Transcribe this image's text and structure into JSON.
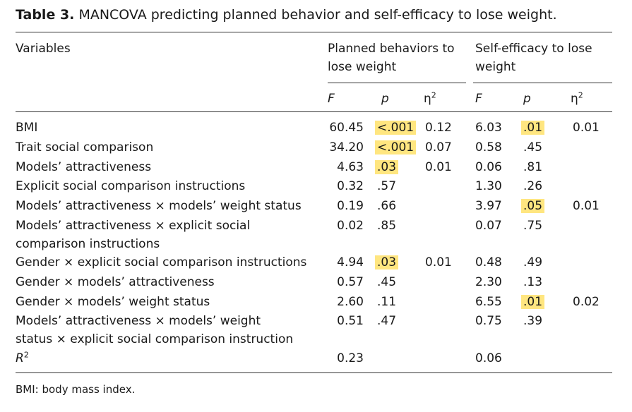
{
  "caption": {
    "label": "Table 3.",
    "text": "MANCOVA predicting planned behavior and self-efficacy to lose weight."
  },
  "header": {
    "variables": "Variables",
    "group1_line1": "Planned behaviors to",
    "group1_line2": "lose weight",
    "group2_line1": "Self-efficacy to lose",
    "group2_line2": "weight",
    "F": "F",
    "p": "p",
    "eta": "η",
    "eta_sup": "2"
  },
  "rows": [
    {
      "label": [
        "BMI"
      ],
      "f1": "60.45",
      "p1": "<.001",
      "h1": true,
      "e1": "0.12",
      "f2": "6.03",
      "p2": ".01",
      "h2": true,
      "e2": "0.01"
    },
    {
      "label": [
        "Trait social comparison"
      ],
      "f1": "34.20",
      "p1": "<.001",
      "h1": true,
      "e1": "0.07",
      "f2": "0.58",
      "p2": ".45",
      "h2": false,
      "e2": ""
    },
    {
      "label": [
        "Models’ attractiveness"
      ],
      "f1": "4.63",
      "p1": ".03",
      "h1": true,
      "e1": "0.01",
      "f2": "0.06",
      "p2": ".81",
      "h2": false,
      "e2": ""
    },
    {
      "label": [
        "Explicit social comparison instructions"
      ],
      "f1": "0.32",
      "p1": ".57",
      "h1": false,
      "e1": "",
      "f2": "1.30",
      "p2": ".26",
      "h2": false,
      "e2": ""
    },
    {
      "label": [
        "Models’ attractiveness × models’ weight status"
      ],
      "f1": "0.19",
      "p1": ".66",
      "h1": false,
      "e1": "",
      "f2": "3.97",
      "p2": ".05",
      "h2": true,
      "e2": "0.01"
    },
    {
      "label": [
        "Models’ attractiveness × explicit social",
        "comparison instructions"
      ],
      "f1": "0.02",
      "p1": ".85",
      "h1": false,
      "e1": "",
      "f2": "0.07",
      "p2": ".75",
      "h2": false,
      "e2": ""
    },
    {
      "label": [
        "Gender × explicit social comparison instructions"
      ],
      "f1": "4.94",
      "p1": ".03",
      "h1": true,
      "e1": "0.01",
      "f2": "0.48",
      "p2": ".49",
      "h2": false,
      "e2": ""
    },
    {
      "label": [
        "Gender × models’ attractiveness"
      ],
      "f1": "0.57",
      "p1": ".45",
      "h1": false,
      "e1": "",
      "f2": "2.30",
      "p2": ".13",
      "h2": false,
      "e2": ""
    },
    {
      "label": [
        "Gender × models’ weight status"
      ],
      "f1": "2.60",
      "p1": ".11",
      "h1": false,
      "e1": "",
      "f2": "6.55",
      "p2": ".01",
      "h2": true,
      "e2": "0.02"
    },
    {
      "label": [
        "Models’ attractiveness × models’ weight",
        "status × explicit social comparison instruction"
      ],
      "f1": "0.51",
      "p1": ".47",
      "h1": false,
      "e1": "",
      "f2": "0.75",
      "p2": ".39",
      "h2": false,
      "e2": ""
    }
  ],
  "r2": {
    "label": "R",
    "sup": "2",
    "v1": "0.23",
    "v2": "0.06"
  },
  "footnote": "BMI: body mass index.",
  "colors": {
    "highlight": "#ffe680"
  }
}
